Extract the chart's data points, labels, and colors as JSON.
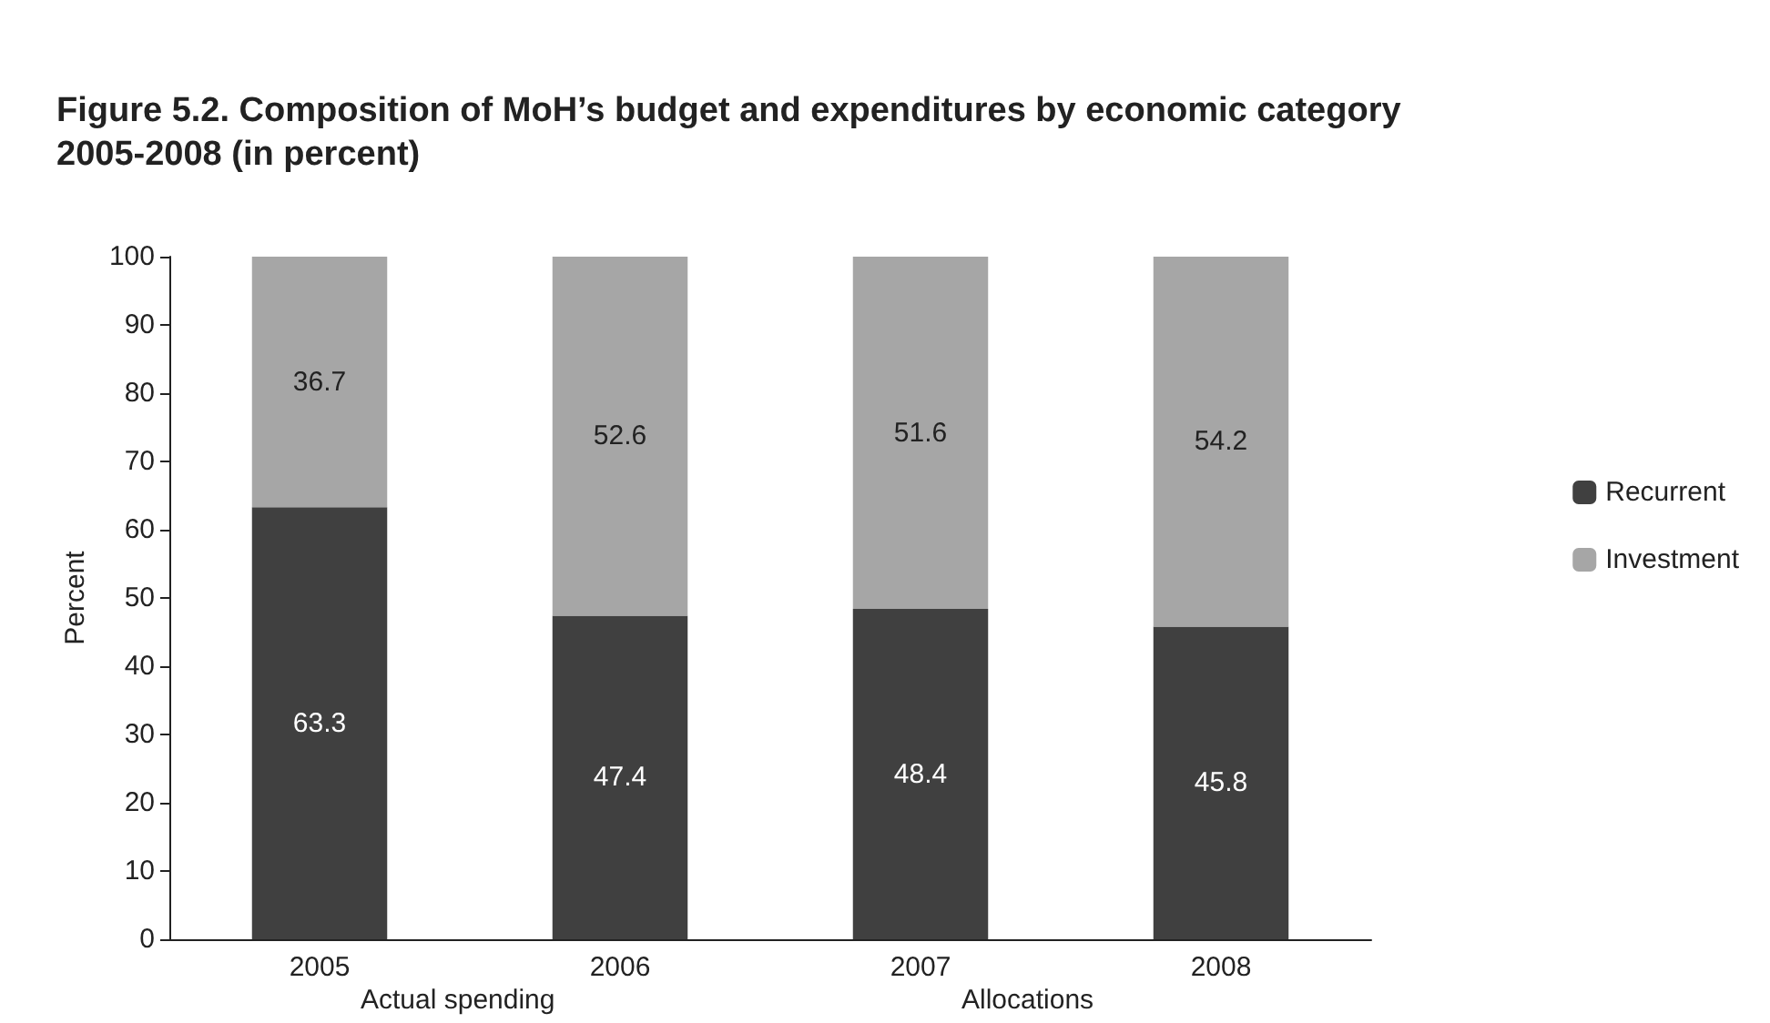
{
  "chart_data": {
    "type": "bar",
    "title": "Figure 5.2. Composition of MoH’s budget and expenditures by economic category 2005-2008 (in percent)",
    "ylabel": "Percent",
    "categories": [
      "2005",
      "2006",
      "2007",
      "2008"
    ],
    "stacked": true,
    "data_labels": true,
    "ylim": [
      0,
      100
    ],
    "yticks": [
      0,
      10,
      20,
      30,
      40,
      50,
      60,
      70,
      80,
      90,
      100
    ],
    "grid": false,
    "legend": "right",
    "series": [
      {
        "name": "Recurrent",
        "color": "#404040",
        "values": [
          63.3,
          47.4,
          48.4,
          45.8
        ]
      },
      {
        "name": "Investment",
        "color": "#a6a6a6",
        "values": [
          36.7,
          52.6,
          51.6,
          54.2
        ]
      }
    ],
    "annotations": [
      "Actual spending",
      "Allocations"
    ]
  }
}
